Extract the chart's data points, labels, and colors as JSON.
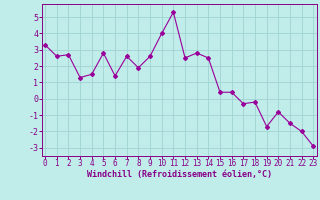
{
  "x": [
    0,
    1,
    2,
    3,
    4,
    5,
    6,
    7,
    8,
    9,
    10,
    11,
    12,
    13,
    14,
    15,
    16,
    17,
    18,
    19,
    20,
    21,
    22,
    23
  ],
  "y": [
    3.3,
    2.6,
    2.7,
    1.3,
    1.5,
    2.8,
    1.4,
    2.6,
    1.9,
    2.6,
    4.0,
    5.3,
    2.5,
    2.8,
    2.5,
    0.4,
    0.4,
    -0.3,
    -0.2,
    -1.7,
    -0.8,
    -1.5,
    -2.0,
    -2.9
  ],
  "line_color": "#990099",
  "marker": "D",
  "marker_size": 2.0,
  "bg_color": "#c0ecea",
  "grid_color": "#a0d4d4",
  "xlabel": "Windchill (Refroidissement éolien,°C)",
  "xlabel_color": "#880088",
  "tick_color": "#880088",
  "ylim": [
    -3.5,
    5.8
  ],
  "xlim": [
    -0.3,
    23.3
  ],
  "yticks": [
    -3,
    -2,
    -1,
    0,
    1,
    2,
    3,
    4,
    5
  ],
  "xticks": [
    0,
    1,
    2,
    3,
    4,
    5,
    6,
    7,
    8,
    9,
    10,
    11,
    12,
    13,
    14,
    15,
    16,
    17,
    18,
    19,
    20,
    21,
    22,
    23
  ],
  "tick_fontsize": 5.5,
  "xlabel_fontsize": 6.0,
  "ytick_fontsize": 6.0
}
